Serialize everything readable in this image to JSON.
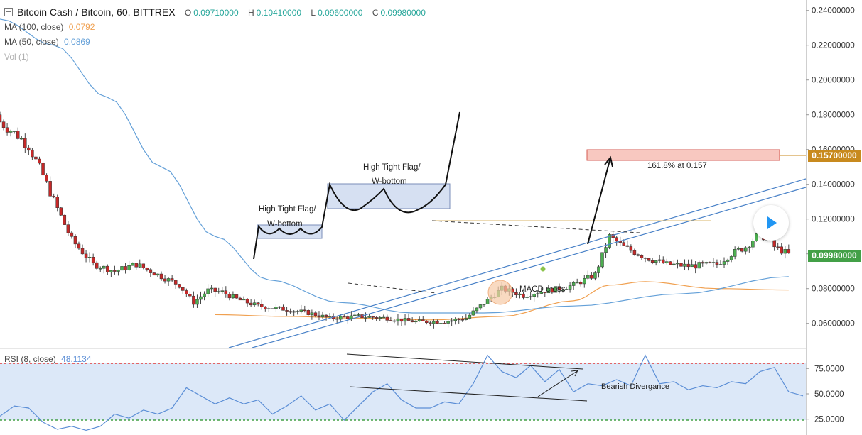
{
  "header": {
    "symbol": "Bitcoin Cash / Bitcoin, 60, BITTREX",
    "open_label": "O",
    "open": "0.09710000",
    "high_label": "H",
    "high": "0.10410000",
    "low_label": "L",
    "low": "0.09600000",
    "close_label": "C",
    "close": "0.09980000"
  },
  "indicators": {
    "ma100_label": "MA (100, close)",
    "ma100_value": "0.0792",
    "ma50_label": "MA (50, close)",
    "ma50_value": "0.0869",
    "vol_label": "Vol (1)",
    "rsi_label": "RSI (8, close)",
    "rsi_value": "48.1134"
  },
  "colors": {
    "up": "#4caf50",
    "down": "#c62828",
    "ma100": "#f0a050",
    "ma50": "#64a0d8",
    "target_tag": "#c88a1e",
    "close_tag": "#43a047",
    "rsi_line": "#5b8ed6",
    "rsi_fill": "#dce8f8",
    "rsi_upper": "#e53935",
    "rsi_lower": "#43a047"
  },
  "chart_data": [
    {
      "type": "candlestick",
      "title": "Bitcoin Cash / Bitcoin, 60, BITTREX",
      "ylim": [
        0.046,
        0.246
      ],
      "y_ticks": [
        "0.24000000",
        "0.22000000",
        "0.20000000",
        "0.18000000",
        "0.16000000",
        "0.14000000",
        "0.12000000",
        "0.10000000",
        "0.08000000",
        "0.06000000"
      ],
      "y_tick_values": [
        0.24,
        0.22,
        0.2,
        0.18,
        0.16,
        0.14,
        0.12,
        0.1,
        0.08,
        0.06
      ],
      "grid": false,
      "price_labels": [
        {
          "text": "0.15700000",
          "value": 0.157,
          "role": "target"
        },
        {
          "text": "0.09980000",
          "value": 0.0998,
          "role": "close"
        }
      ],
      "close_path": [
        [
          0,
          0.176
        ],
        [
          5,
          0.168
        ],
        [
          8,
          0.162
        ],
        [
          12,
          0.145
        ],
        [
          16,
          0.126
        ],
        [
          20,
          0.108
        ],
        [
          26,
          0.094
        ],
        [
          32,
          0.09
        ],
        [
          38,
          0.094
        ],
        [
          44,
          0.088
        ],
        [
          50,
          0.082
        ],
        [
          54,
          0.072
        ],
        [
          58,
          0.079
        ],
        [
          62,
          0.078
        ],
        [
          66,
          0.074
        ],
        [
          72,
          0.07
        ],
        [
          80,
          0.068
        ],
        [
          86,
          0.066
        ],
        [
          92,
          0.063
        ],
        [
          100,
          0.064
        ],
        [
          108,
          0.063
        ],
        [
          116,
          0.061
        ],
        [
          124,
          0.061
        ],
        [
          130,
          0.063
        ],
        [
          134,
          0.07
        ],
        [
          140,
          0.08
        ],
        [
          146,
          0.076
        ],
        [
          150,
          0.078
        ],
        [
          156,
          0.08
        ],
        [
          160,
          0.082
        ],
        [
          166,
          0.088
        ],
        [
          170,
          0.11
        ],
        [
          174,
          0.104
        ],
        [
          180,
          0.098
        ],
        [
          186,
          0.094
        ],
        [
          192,
          0.093
        ],
        [
          200,
          0.094
        ],
        [
          204,
          0.1
        ],
        [
          208,
          0.104
        ],
        [
          212,
          0.112
        ],
        [
          216,
          0.104
        ],
        [
          220,
          0.0998
        ]
      ],
      "ma100": [
        [
          60,
          0.065
        ],
        [
          80,
          0.064
        ],
        [
          100,
          0.063
        ],
        [
          120,
          0.062
        ],
        [
          140,
          0.064
        ],
        [
          160,
          0.073
        ],
        [
          170,
          0.082
        ],
        [
          180,
          0.084
        ],
        [
          200,
          0.08
        ],
        [
          220,
          0.0792
        ]
      ],
      "ma50": [
        [
          0,
          0.235
        ],
        [
          15,
          0.22
        ],
        [
          30,
          0.19
        ],
        [
          45,
          0.15
        ],
        [
          60,
          0.11
        ],
        [
          75,
          0.085
        ],
        [
          95,
          0.072
        ],
        [
          115,
          0.066
        ],
        [
          135,
          0.066
        ],
        [
          160,
          0.07
        ],
        [
          190,
          0.077
        ],
        [
          220,
          0.0869
        ]
      ],
      "annotations": [
        {
          "text": "High Tight Flag/",
          "kind": "label"
        },
        {
          "text": "W-bottom",
          "kind": "label"
        },
        {
          "text": "High Tight Flag/",
          "kind": "label"
        },
        {
          "text": "W-bottom",
          "kind": "label"
        },
        {
          "text": "161.8% at 0.157",
          "kind": "label"
        },
        {
          "text": "MACD cross",
          "kind": "label"
        }
      ]
    },
    {
      "type": "line",
      "title": "RSI (8, close)",
      "ylim": [
        15,
        92
      ],
      "y_ticks": [
        "75.0000",
        "50.0000",
        "25.0000"
      ],
      "y_tick_values": [
        75,
        50,
        25
      ],
      "bands": {
        "upper": 80,
        "lower": 20
      },
      "values": [
        [
          0,
          28
        ],
        [
          4,
          38
        ],
        [
          8,
          36
        ],
        [
          12,
          22
        ],
        [
          16,
          15
        ],
        [
          20,
          18
        ],
        [
          24,
          14
        ],
        [
          28,
          18
        ],
        [
          32,
          30
        ],
        [
          36,
          26
        ],
        [
          40,
          34
        ],
        [
          44,
          30
        ],
        [
          48,
          36
        ],
        [
          52,
          56
        ],
        [
          56,
          48
        ],
        [
          60,
          40
        ],
        [
          64,
          46
        ],
        [
          68,
          40
        ],
        [
          72,
          44
        ],
        [
          76,
          30
        ],
        [
          80,
          38
        ],
        [
          84,
          48
        ],
        [
          88,
          34
        ],
        [
          92,
          40
        ],
        [
          96,
          24
        ],
        [
          100,
          38
        ],
        [
          104,
          52
        ],
        [
          108,
          60
        ],
        [
          112,
          44
        ],
        [
          116,
          36
        ],
        [
          120,
          36
        ],
        [
          124,
          42
        ],
        [
          128,
          40
        ],
        [
          132,
          60
        ],
        [
          136,
          88
        ],
        [
          140,
          72
        ],
        [
          144,
          66
        ],
        [
          148,
          78
        ],
        [
          152,
          62
        ],
        [
          156,
          74
        ],
        [
          160,
          52
        ],
        [
          164,
          60
        ],
        [
          168,
          58
        ],
        [
          172,
          64
        ],
        [
          176,
          58
        ],
        [
          180,
          88
        ],
        [
          184,
          60
        ],
        [
          188,
          62
        ],
        [
          192,
          54
        ],
        [
          196,
          58
        ],
        [
          200,
          56
        ],
        [
          204,
          62
        ],
        [
          208,
          60
        ],
        [
          212,
          72
        ],
        [
          216,
          76
        ],
        [
          220,
          52
        ],
        [
          224,
          48
        ]
      ],
      "annotations": [
        {
          "text": "Bearish Divergance",
          "kind": "label"
        }
      ]
    }
  ]
}
